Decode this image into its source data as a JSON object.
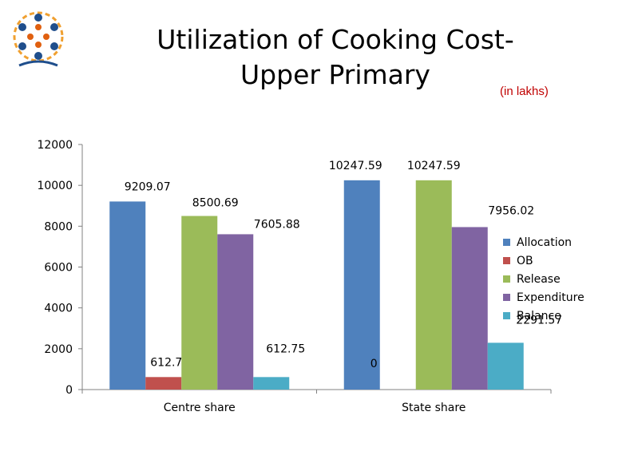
{
  "title_line1": "Utilization of Cooking Cost-",
  "title_line2": "Upper Primary",
  "unit_label": "(in lakhs)",
  "colors": {
    "allocation": "#4f81bd",
    "ob": "#c0504d",
    "release": "#9bbb59",
    "expenditure": "#8064a2",
    "balance": "#4bacc6",
    "axis": "#808080"
  },
  "chart_data": {
    "type": "bar",
    "title": "Utilization of Cooking Cost- Upper Primary",
    "xlabel": "",
    "ylabel": "",
    "ylim": [
      0,
      12000
    ],
    "yticks": [
      "0",
      "2000",
      "4000",
      "6000",
      "8000",
      "10000",
      "12000"
    ],
    "categories": [
      "Centre share",
      "State share"
    ],
    "legend_position": "right",
    "grid": false,
    "series": [
      {
        "name": "Allocation",
        "values": [
          9209.07,
          10247.59
        ],
        "labels": [
          "9209.07",
          "10247.59"
        ]
      },
      {
        "name": "OB",
        "values": [
          612.75,
          0
        ],
        "labels": [
          "612.75",
          "0"
        ]
      },
      {
        "name": "Release",
        "values": [
          8500.69,
          10247.59
        ],
        "labels": [
          "8500.69",
          "10247.59"
        ]
      },
      {
        "name": "Expenditure",
        "values": [
          7605.88,
          7956.02
        ],
        "labels": [
          "7605.88",
          "7956.02"
        ]
      },
      {
        "name": "Balance",
        "values": [
          612.75,
          2291.57
        ],
        "labels": [
          "612.75",
          "2291.57"
        ]
      }
    ]
  }
}
